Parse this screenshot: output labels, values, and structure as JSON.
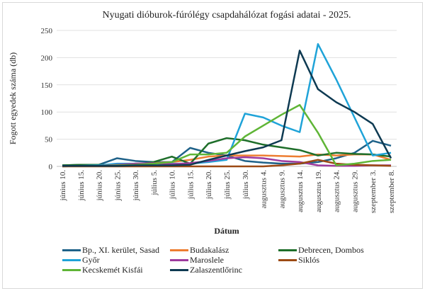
{
  "chart_data": {
    "type": "line",
    "title": "Nyugati dióburok-fúrólégy csapdahálózat fogási adatai - 2025.",
    "xlabel": "Dátum",
    "ylabel": "Fogott egyedek száma (db)",
    "ylim": [
      0,
      250
    ],
    "yticks": [
      0,
      50,
      100,
      150,
      200,
      250
    ],
    "grid": true,
    "legend_position": "bottom",
    "categories": [
      "június 10.",
      "június 15.",
      "június 20.",
      "június 25.",
      "június 30.",
      "július 5.",
      "július 10.",
      "július 15.",
      "július 20.",
      "július 25.",
      "július 30.",
      "augusztus 4.",
      "augusztus 9.",
      "augusztus 14.",
      "augusztus 19.",
      "augusztus 24.",
      "augusztus 29.",
      "szeptember 3.",
      "szeptember 8."
    ],
    "series": [
      {
        "name": "Bp., XI. kerület, Sasad",
        "color": "#1f6289",
        "values": [
          2,
          3,
          3,
          15,
          10,
          8,
          8,
          34,
          25,
          20,
          10,
          7,
          5,
          5,
          8,
          15,
          25,
          47,
          38
        ]
      },
      {
        "name": "Budakalász",
        "color": "#ed7d31",
        "values": [
          0,
          1,
          2,
          3,
          5,
          6,
          8,
          12,
          18,
          20,
          20,
          20,
          19,
          18,
          22,
          20,
          22,
          22,
          12
        ]
      },
      {
        "name": "Debrecen, Dombos",
        "color": "#1e6e2a",
        "values": [
          2,
          3,
          3,
          3,
          3,
          8,
          18,
          5,
          42,
          52,
          48,
          40,
          35,
          30,
          20,
          25,
          23,
          22,
          18
        ]
      },
      {
        "name": "Győr",
        "color": "#1fa3d8",
        "values": [
          0,
          1,
          2,
          5,
          5,
          5,
          5,
          5,
          8,
          12,
          97,
          90,
          75,
          63,
          225,
          160,
          90,
          20,
          25
        ]
      },
      {
        "name": "Maroslele",
        "color": "#9e3a9e",
        "values": [
          1,
          1,
          1,
          3,
          5,
          6,
          4,
          6,
          10,
          15,
          17,
          15,
          10,
          8,
          2,
          1,
          1,
          2,
          2
        ]
      },
      {
        "name": "Siklós",
        "color": "#9c4a14",
        "values": [
          0,
          0,
          0,
          0,
          0,
          0,
          0,
          0,
          0,
          0,
          0,
          0,
          2,
          5,
          12,
          5,
          3,
          2,
          1
        ]
      },
      {
        "name": "Kecskemét Kisfái",
        "color": "#5fb536",
        "values": [
          1,
          1,
          1,
          2,
          3,
          5,
          8,
          22,
          22,
          25,
          55,
          75,
          95,
          113,
          62,
          2,
          5,
          10,
          12
        ]
      },
      {
        "name": "Zalaszentlőrinc",
        "color": "#0e3a52",
        "values": [
          1,
          1,
          1,
          1,
          2,
          2,
          2,
          3,
          12,
          20,
          28,
          35,
          48,
          213,
          142,
          118,
          100,
          78,
          15
        ]
      }
    ]
  }
}
